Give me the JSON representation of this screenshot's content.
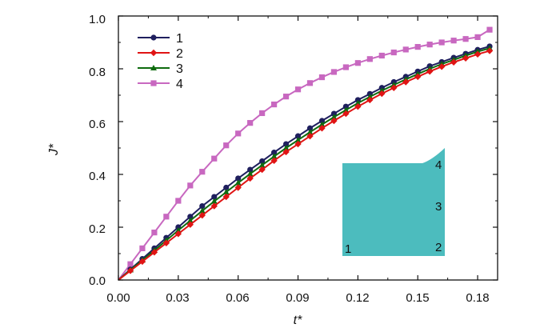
{
  "chart_data": {
    "type": "line",
    "xlabel": "t*",
    "ylabel": "J*",
    "xlim": [
      0.0,
      0.19
    ],
    "ylim": [
      0.0,
      1.0
    ],
    "x_ticks": [
      "0.00",
      "0.03",
      "0.06",
      "0.09",
      "0.12",
      "0.15",
      "0.18"
    ],
    "y_ticks": [
      "0.0",
      "0.2",
      "0.4",
      "0.6",
      "0.8",
      "1.0"
    ],
    "grid": false,
    "legend_position": "top-left",
    "x": [
      0.0,
      0.006,
      0.012,
      0.018,
      0.024,
      0.03,
      0.036,
      0.042,
      0.048,
      0.054,
      0.06,
      0.066,
      0.072,
      0.078,
      0.084,
      0.09,
      0.096,
      0.102,
      0.108,
      0.114,
      0.12,
      0.126,
      0.132,
      0.138,
      0.144,
      0.15,
      0.156,
      0.162,
      0.168,
      0.174,
      0.18,
      0.186
    ],
    "series": [
      {
        "name": "1",
        "color": "#1f1f5e",
        "marker": "circle",
        "values": [
          0.0,
          0.04,
          0.08,
          0.12,
          0.16,
          0.2,
          0.24,
          0.28,
          0.315,
          0.35,
          0.385,
          0.418,
          0.45,
          0.483,
          0.515,
          0.545,
          0.575,
          0.603,
          0.63,
          0.657,
          0.682,
          0.705,
          0.728,
          0.75,
          0.77,
          0.79,
          0.81,
          0.826,
          0.842,
          0.857,
          0.872,
          0.885
        ]
      },
      {
        "name": "2",
        "color": "#e01414",
        "marker": "diamond",
        "values": [
          0.0,
          0.035,
          0.07,
          0.105,
          0.14,
          0.175,
          0.21,
          0.245,
          0.28,
          0.315,
          0.35,
          0.385,
          0.418,
          0.452,
          0.485,
          0.515,
          0.545,
          0.575,
          0.603,
          0.63,
          0.657,
          0.682,
          0.706,
          0.728,
          0.75,
          0.77,
          0.79,
          0.808,
          0.825,
          0.84,
          0.855,
          0.868
        ]
      },
      {
        "name": "3",
        "color": "#0e6b0e",
        "marker": "triangle",
        "values": [
          0.0,
          0.038,
          0.075,
          0.112,
          0.15,
          0.188,
          0.225,
          0.262,
          0.298,
          0.333,
          0.368,
          0.402,
          0.435,
          0.468,
          0.5,
          0.53,
          0.56,
          0.589,
          0.617,
          0.644,
          0.67,
          0.694,
          0.717,
          0.739,
          0.76,
          0.78,
          0.8,
          0.818,
          0.834,
          0.85,
          0.865,
          0.878
        ]
      },
      {
        "name": "4",
        "color": "#c868c0",
        "marker": "square",
        "values": [
          0.0,
          0.06,
          0.12,
          0.18,
          0.24,
          0.3,
          0.358,
          0.41,
          0.46,
          0.51,
          0.555,
          0.595,
          0.632,
          0.665,
          0.695,
          0.722,
          0.746,
          0.768,
          0.788,
          0.806,
          0.822,
          0.837,
          0.85,
          0.862,
          0.873,
          0.883,
          0.892,
          0.9,
          0.907,
          0.913,
          0.92,
          0.948
        ]
      }
    ],
    "inset": {
      "color": "#4cbcbe",
      "labels": [
        "1",
        "2",
        "3",
        "4"
      ]
    }
  }
}
